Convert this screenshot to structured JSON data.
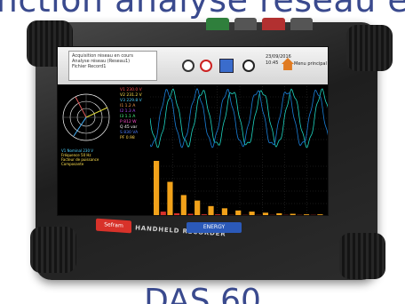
{
  "headline": "nction analyse réseau e",
  "footer_model": "DAS 60",
  "device": {
    "brand": "Sefram",
    "model_label": "HANDHELD RECORDER",
    "badge": "ENERGY"
  },
  "toolbar": {
    "info_line1": "Acquisition réseau en cours",
    "info_line2": "Analyse réseau (Reseau1)",
    "info_line3": "Fichier Record1",
    "datetime": "23/09/2016",
    "time": "10:45",
    "menu_label": "Menu principal"
  },
  "readings": [
    "V1 230.0 V",
    "V2 231.2 V",
    "V3 229.8 V",
    "I1 1.2 A",
    "I2 1.3 A",
    "I3 1.1 A",
    "P 812 W",
    "Q 45 var",
    "S 830 VA",
    "PF 0.98"
  ],
  "legend": [
    "V1 Nominal 230 V",
    "Fréquence 50 Hz",
    "Facteur de puissance",
    "Composante"
  ],
  "waveform": {
    "cycles": 6,
    "colors": [
      "#1ed6c3",
      "#1a7fd8"
    ]
  },
  "harmonics": [
    100,
    8,
    62,
    5,
    38,
    4,
    28,
    3,
    18,
    3,
    14,
    2,
    10,
    2,
    8,
    2,
    6,
    2,
    5,
    2,
    4,
    2,
    3,
    2,
    3
  ],
  "colors": {
    "accent": "#3a4a8e",
    "trace": "#1ed6c3",
    "bar": "#f2a21a",
    "bar_red": "#d8322a"
  }
}
